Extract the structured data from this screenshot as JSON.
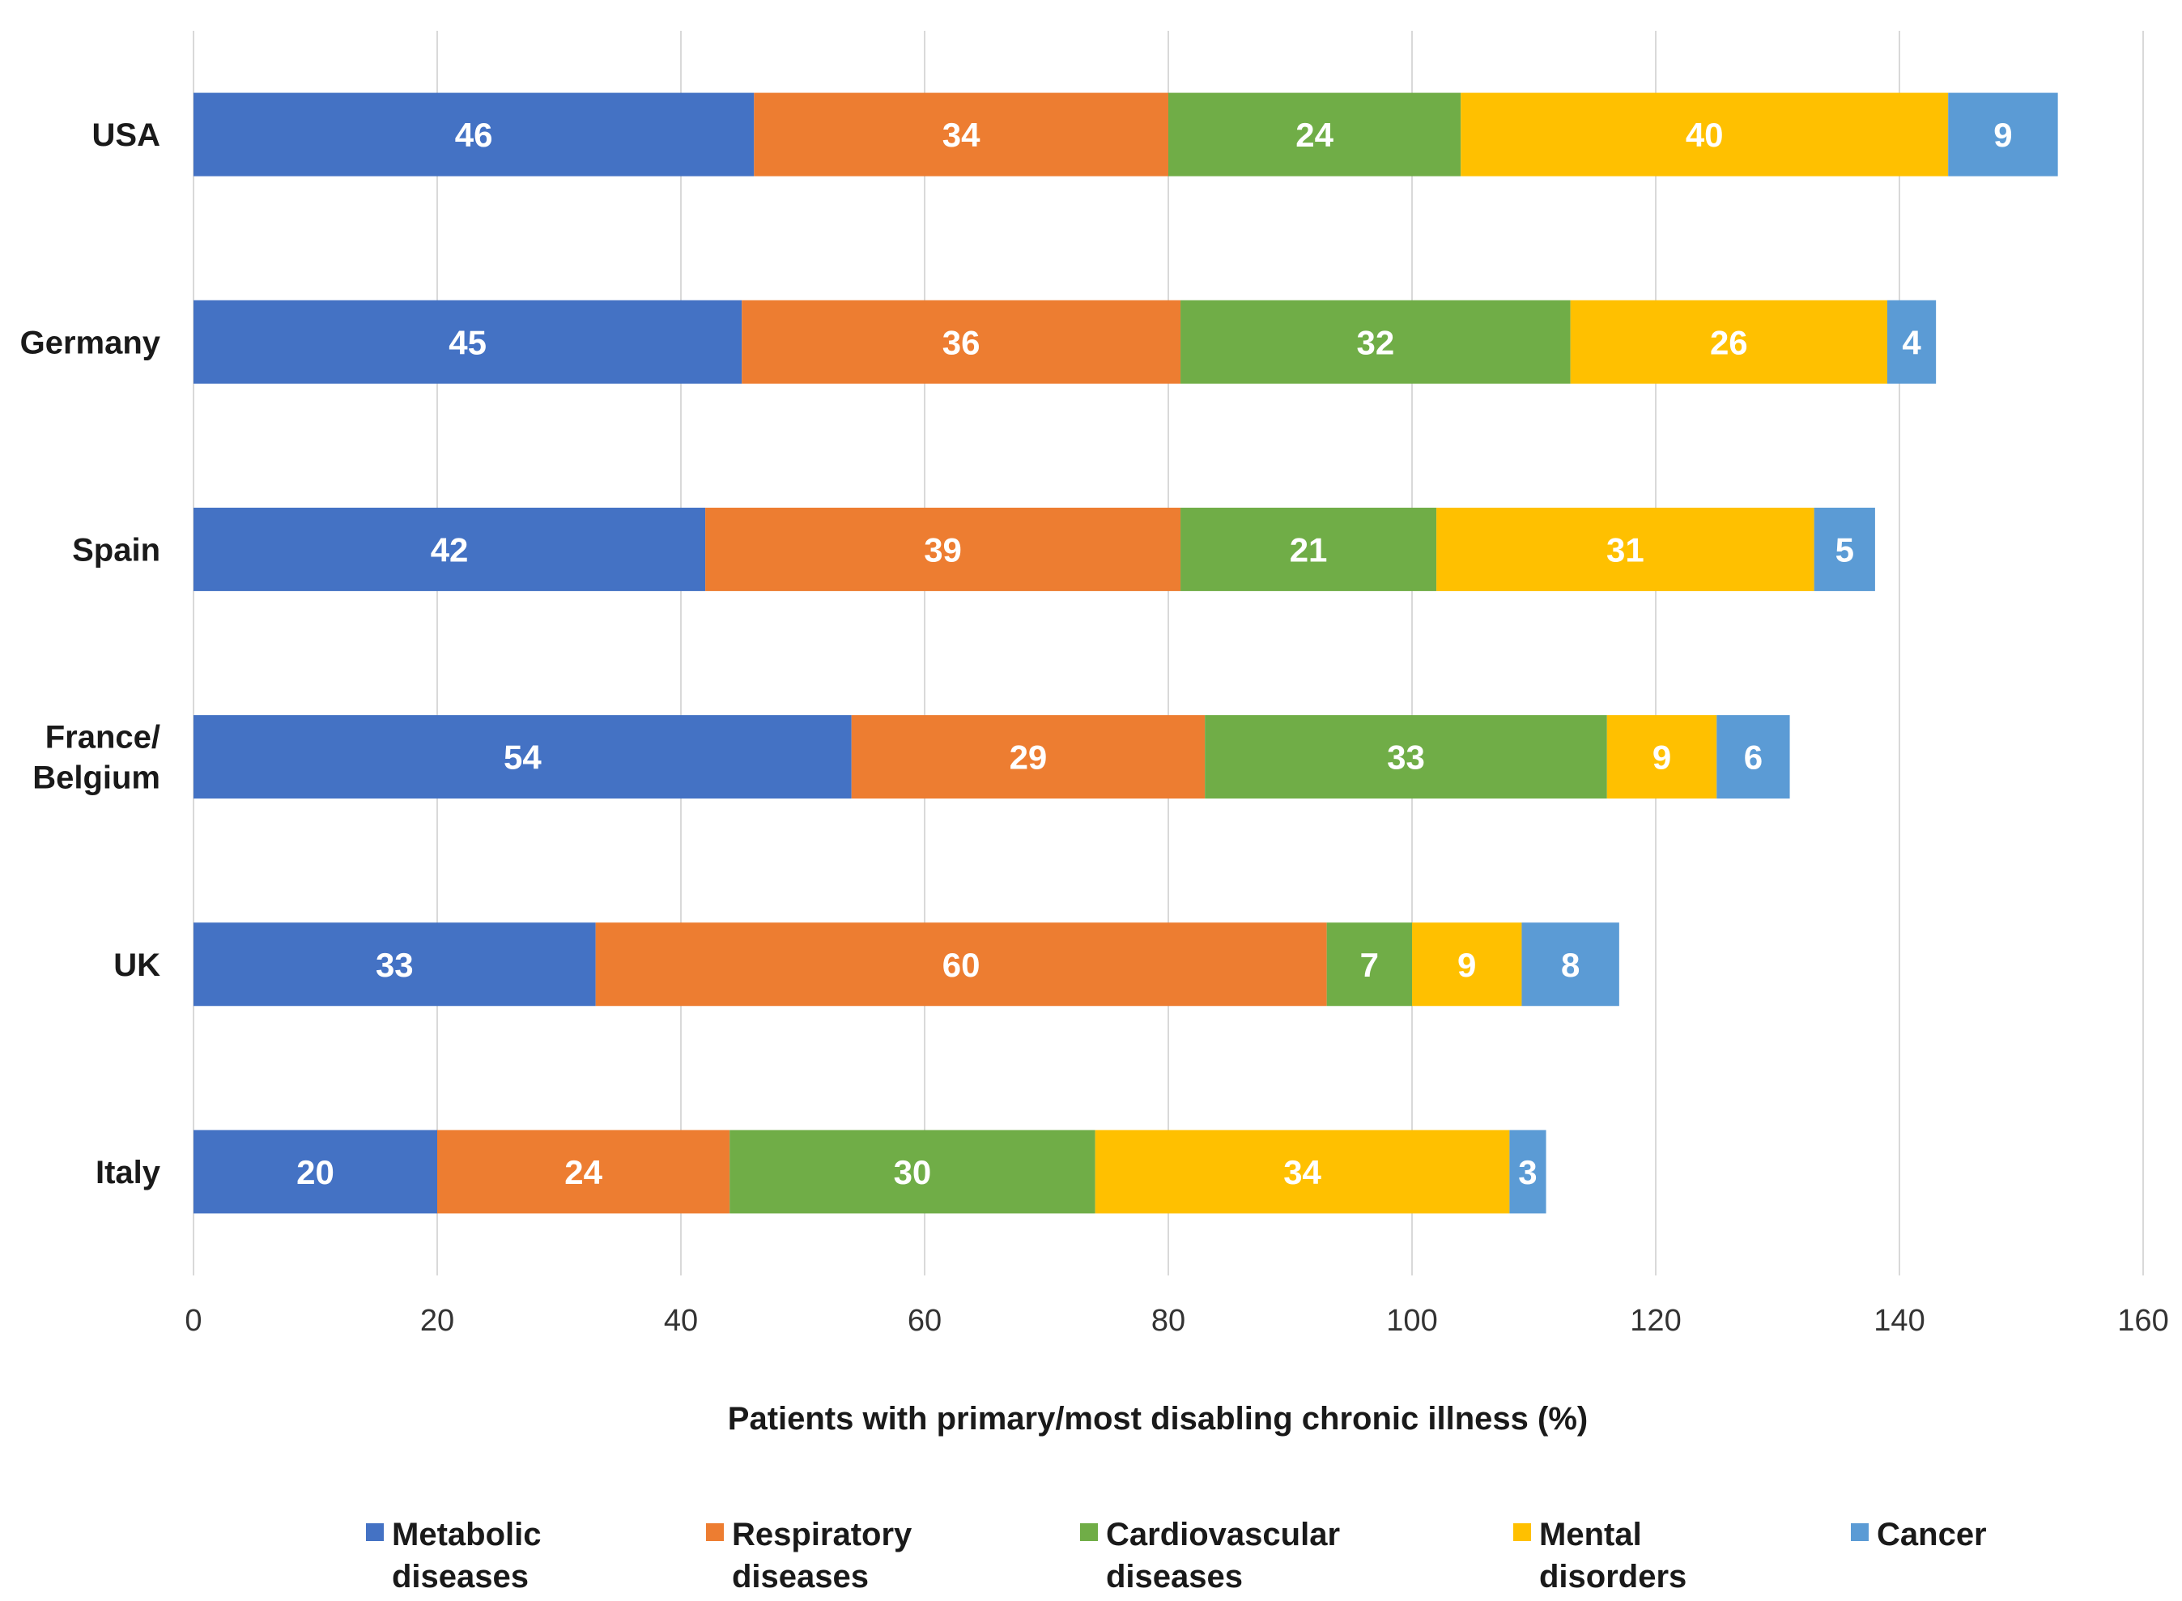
{
  "chart_data": {
    "type": "bar",
    "orientation": "horizontal",
    "stacked": true,
    "title": "",
    "xlabel": "Patients with primary/most disabling chronic illness (%)",
    "ylabel": "",
    "xlim": [
      0,
      160
    ],
    "xticks": [
      0,
      20,
      40,
      60,
      80,
      100,
      120,
      140,
      160
    ],
    "grid": true,
    "legend_position": "bottom",
    "categories": [
      "USA",
      "Germany",
      "Spain",
      "France/\nBelgium",
      "UK",
      "Italy"
    ],
    "series": [
      {
        "name": "Metabolic diseases",
        "color": "#4472C4",
        "values": [
          46,
          45,
          42,
          54,
          33,
          20
        ]
      },
      {
        "name": "Respiratory diseases",
        "color": "#ED7D31",
        "values": [
          34,
          36,
          39,
          29,
          60,
          24
        ]
      },
      {
        "name": "Cardiovascular diseases",
        "color": "#70AD47",
        "values": [
          24,
          32,
          21,
          33,
          7,
          30
        ]
      },
      {
        "name": "Mental disorders",
        "color": "#FFC000",
        "values": [
          40,
          26,
          31,
          9,
          9,
          34
        ]
      },
      {
        "name": "Cancer",
        "color": "#5B9BD5",
        "values": [
          9,
          4,
          5,
          6,
          8,
          3
        ]
      }
    ]
  }
}
